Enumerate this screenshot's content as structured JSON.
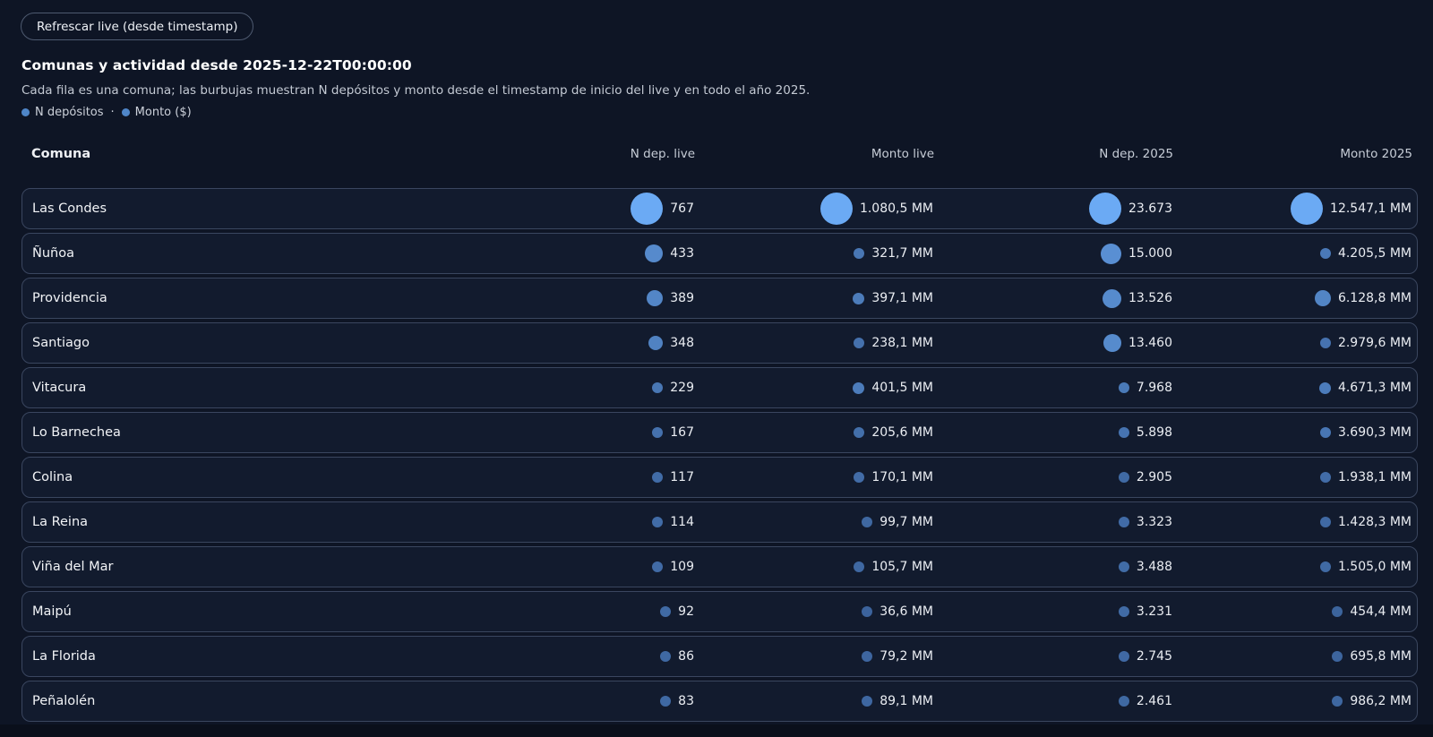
{
  "toolbar": {
    "refresh_button": "Refrescar live (desde timestamp)"
  },
  "header": {
    "title": "Comunas y actividad desde 2025-12-22T00:00:00",
    "subtitle": "Cada fila es una comuna; las burbujas muestran N depósitos y monto desde el timestamp de inicio del live y en todo el año 2025.",
    "legend": {
      "item1": "N depósitos",
      "separator": "·",
      "item2": "Monto ($)"
    }
  },
  "table": {
    "columns": [
      "Comuna",
      "N dep. live",
      "Monto live",
      "N dep. 2025",
      "Monto 2025"
    ],
    "rows": [
      {
        "comuna": "Las Condes",
        "n_live": {
          "text": "767",
          "value": 767
        },
        "monto_live": {
          "text": "1.080,5 MM",
          "value": 1080.5
        },
        "n_2025": {
          "text": "23.673",
          "value": 23673
        },
        "monto_2025": {
          "text": "12.547,1 MM",
          "value": 12547.1
        }
      },
      {
        "comuna": "Ñuñoa",
        "n_live": {
          "text": "433",
          "value": 433
        },
        "monto_live": {
          "text": "321,7 MM",
          "value": 321.7
        },
        "n_2025": {
          "text": "15.000",
          "value": 15000
        },
        "monto_2025": {
          "text": "4.205,5 MM",
          "value": 4205.5
        }
      },
      {
        "comuna": "Providencia",
        "n_live": {
          "text": "389",
          "value": 389
        },
        "monto_live": {
          "text": "397,1 MM",
          "value": 397.1
        },
        "n_2025": {
          "text": "13.526",
          "value": 13526
        },
        "monto_2025": {
          "text": "6.128,8 MM",
          "value": 6128.8
        }
      },
      {
        "comuna": "Santiago",
        "n_live": {
          "text": "348",
          "value": 348
        },
        "monto_live": {
          "text": "238,1 MM",
          "value": 238.1
        },
        "n_2025": {
          "text": "13.460",
          "value": 13460
        },
        "monto_2025": {
          "text": "2.979,6 MM",
          "value": 2979.6
        }
      },
      {
        "comuna": "Vitacura",
        "n_live": {
          "text": "229",
          "value": 229
        },
        "monto_live": {
          "text": "401,5 MM",
          "value": 401.5
        },
        "n_2025": {
          "text": "7.968",
          "value": 7968
        },
        "monto_2025": {
          "text": "4.671,3 MM",
          "value": 4671.3
        }
      },
      {
        "comuna": "Lo Barnechea",
        "n_live": {
          "text": "167",
          "value": 167
        },
        "monto_live": {
          "text": "205,6 MM",
          "value": 205.6
        },
        "n_2025": {
          "text": "5.898",
          "value": 5898
        },
        "monto_2025": {
          "text": "3.690,3 MM",
          "value": 3690.3
        }
      },
      {
        "comuna": "Colina",
        "n_live": {
          "text": "117",
          "value": 117
        },
        "monto_live": {
          "text": "170,1 MM",
          "value": 170.1
        },
        "n_2025": {
          "text": "2.905",
          "value": 2905
        },
        "monto_2025": {
          "text": "1.938,1 MM",
          "value": 1938.1
        }
      },
      {
        "comuna": "La Reina",
        "n_live": {
          "text": "114",
          "value": 114
        },
        "monto_live": {
          "text": "99,7 MM",
          "value": 99.7
        },
        "n_2025": {
          "text": "3.323",
          "value": 3323
        },
        "monto_2025": {
          "text": "1.428,3 MM",
          "value": 1428.3
        }
      },
      {
        "comuna": "Viña del Mar",
        "n_live": {
          "text": "109",
          "value": 109
        },
        "monto_live": {
          "text": "105,7 MM",
          "value": 105.7
        },
        "n_2025": {
          "text": "3.488",
          "value": 3488
        },
        "monto_2025": {
          "text": "1.505,0 MM",
          "value": 1505.0
        }
      },
      {
        "comuna": "Maipú",
        "n_live": {
          "text": "92",
          "value": 92
        },
        "monto_live": {
          "text": "36,6 MM",
          "value": 36.6
        },
        "n_2025": {
          "text": "3.231",
          "value": 3231
        },
        "monto_2025": {
          "text": "454,4 MM",
          "value": 454.4
        }
      },
      {
        "comuna": "La Florida",
        "n_live": {
          "text": "86",
          "value": 86
        },
        "monto_live": {
          "text": "79,2 MM",
          "value": 79.2
        },
        "n_2025": {
          "text": "2.745",
          "value": 2745
        },
        "monto_2025": {
          "text": "695,8 MM",
          "value": 695.8
        }
      },
      {
        "comuna": "Peñalolén",
        "n_live": {
          "text": "83",
          "value": 83
        },
        "monto_live": {
          "text": "89,1 MM",
          "value": 89.1
        },
        "n_2025": {
          "text": "2.461",
          "value": 2461
        },
        "monto_2025": {
          "text": "986,2 MM",
          "value": 986.2
        }
      }
    ]
  },
  "colors": {
    "page_bg": "#0e1525",
    "card_bg": "#121b2e",
    "card_border": "#3a465f",
    "bubble_low": "#3a6199",
    "bubble_high": "#6baaf4",
    "legend_dot": "#4f86c8"
  },
  "chart_data": {
    "type": "table",
    "title": "Comunas y actividad desde 2025-12-22T00:00:00",
    "categories": [
      "Las Condes",
      "Ñuñoa",
      "Providencia",
      "Santiago",
      "Vitacura",
      "Lo Barnechea",
      "Colina",
      "La Reina",
      "Viña del Mar",
      "Maipú",
      "La Florida",
      "Peñalolén"
    ],
    "series": [
      {
        "name": "N dep. live",
        "values": [
          767,
          433,
          389,
          348,
          229,
          167,
          117,
          114,
          109,
          92,
          86,
          83
        ]
      },
      {
        "name": "Monto live (MM)",
        "values": [
          1080.5,
          321.7,
          397.1,
          238.1,
          401.5,
          205.6,
          170.1,
          99.7,
          105.7,
          36.6,
          79.2,
          89.1
        ]
      },
      {
        "name": "N dep. 2025",
        "values": [
          23673,
          15000,
          13526,
          13460,
          7968,
          5898,
          2905,
          3323,
          3488,
          3231,
          2745,
          2461
        ]
      },
      {
        "name": "Monto 2025 (MM)",
        "values": [
          12547.1,
          4205.5,
          6128.8,
          2979.6,
          4671.3,
          3690.3,
          1938.1,
          1428.3,
          1505.0,
          454.4,
          695.8,
          986.2
        ]
      }
    ],
    "legend_entries": [
      "N depósitos",
      "Monto ($)"
    ],
    "encoding": "bubble size and brightness scale with value relative to column maximum"
  }
}
